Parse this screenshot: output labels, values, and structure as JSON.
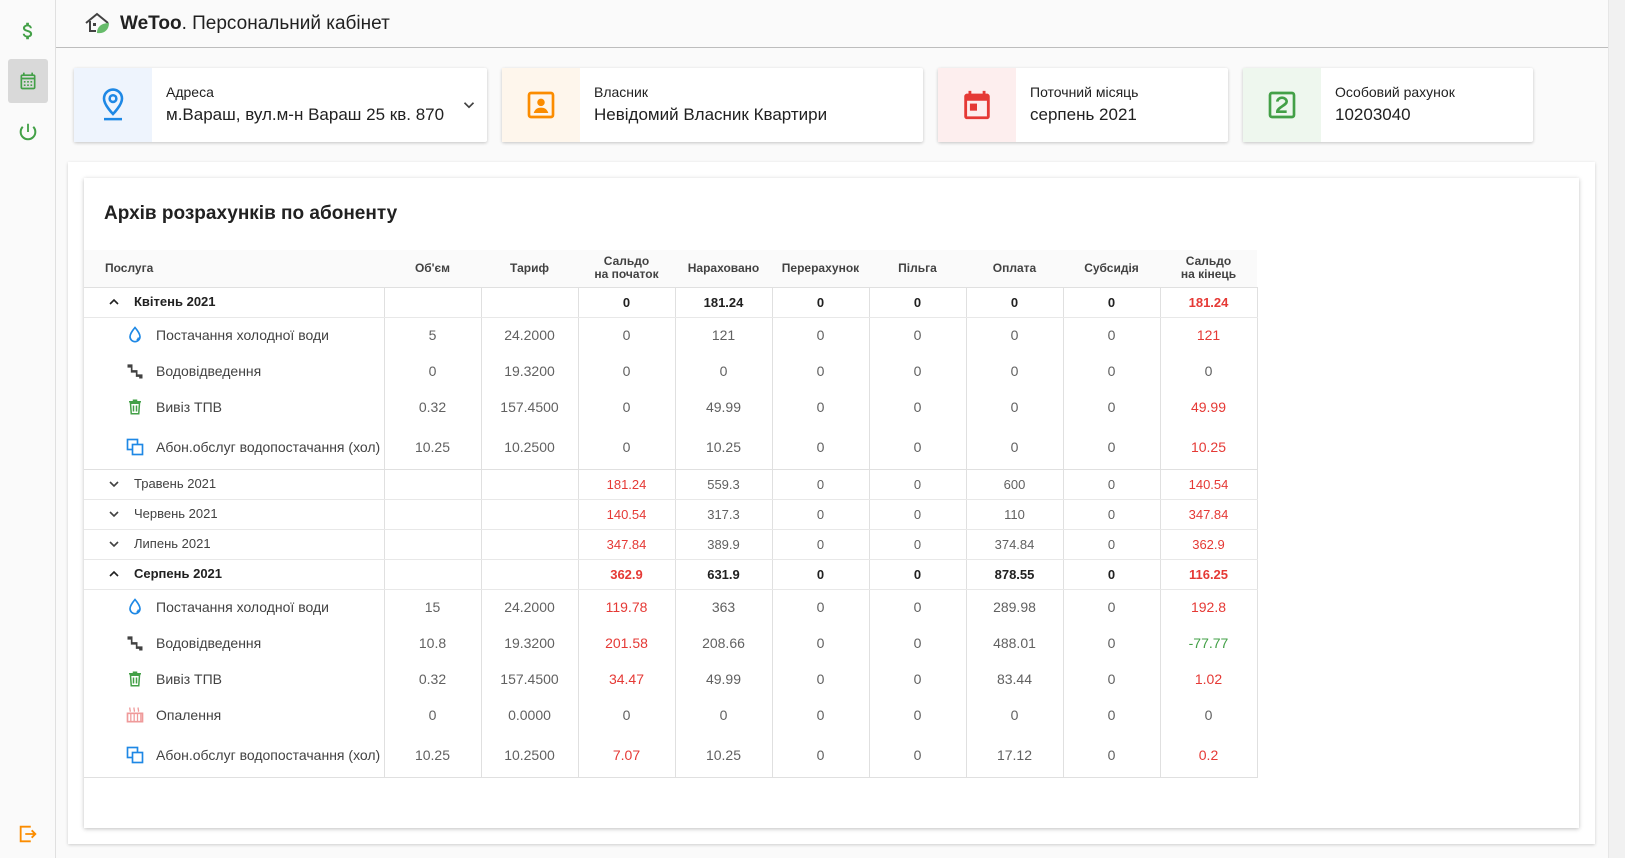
{
  "header": {
    "brand": "WeToo",
    "title_rest": ". Персональний кабінет"
  },
  "sidebar": {
    "items": [
      {
        "icon": "dollar-icon"
      },
      {
        "icon": "calendar-icon",
        "active": true
      },
      {
        "icon": "meter-icon"
      }
    ],
    "logout_icon": "logout-icon"
  },
  "cards": {
    "address": {
      "label": "Адреса",
      "value": "м.Вараш, вул.м-н Вараш 25 кв. 870"
    },
    "owner": {
      "label": "Власник",
      "value": "Невідомий Власник Квартири"
    },
    "month": {
      "label": "Поточний місяць",
      "value": "серпень 2021"
    },
    "account": {
      "label": "Особовий рахунок",
      "value": "10203040"
    }
  },
  "panel": {
    "title": "Архів розрахунків по абоненту"
  },
  "table": {
    "headers": {
      "service": "Послуга",
      "volume": "Об'єм",
      "tariff": "Тариф",
      "balance_start_1": "Сальдо",
      "balance_start_2": "на початок",
      "accrued": "Нараховано",
      "recalc": "Перерахунок",
      "benefit": "Пільга",
      "payment": "Оплата",
      "subsidy": "Субсидія",
      "balance_end_1": "Сальдо",
      "balance_end_2": "на кінець"
    },
    "groups": [
      {
        "name": "Квітень 2021",
        "expanded": true,
        "start": "0",
        "accrued": "181.24",
        "recalc": "0",
        "benefit": "0",
        "payment": "0",
        "subsidy": "0",
        "end": "181.24",
        "items": [
          {
            "icon": "water-drop-icon",
            "name": "Постачання холодної води",
            "volume": "5",
            "tariff": "24.2000",
            "start": "0",
            "accrued": "121",
            "recalc": "0",
            "benefit": "0",
            "payment": "0",
            "subsidy": "0",
            "end": "121"
          },
          {
            "icon": "drain-pipe-icon",
            "name": "Водовідведення",
            "volume": "0",
            "tariff": "19.3200",
            "start": "0",
            "accrued": "0",
            "recalc": "0",
            "benefit": "0",
            "payment": "0",
            "subsidy": "0",
            "end": "0"
          },
          {
            "icon": "trash-icon",
            "name": "Вивіз ТПВ",
            "volume": "0.32",
            "tariff": "157.4500",
            "start": "0",
            "accrued": "49.99",
            "recalc": "0",
            "benefit": "0",
            "payment": "0",
            "subsidy": "0",
            "end": "49.99"
          },
          {
            "icon": "copy-icon",
            "name": "Абон.обслуг водопостачання (хол)",
            "volume": "10.25",
            "tariff": "10.2500",
            "start": "0",
            "accrued": "10.25",
            "recalc": "0",
            "benefit": "0",
            "payment": "0",
            "subsidy": "0",
            "end": "10.25"
          }
        ]
      },
      {
        "name": "Травень 2021",
        "expanded": false,
        "start": "181.24",
        "accrued": "559.3",
        "recalc": "0",
        "benefit": "0",
        "payment": "600",
        "subsidy": "0",
        "end": "140.54",
        "items": []
      },
      {
        "name": "Червень 2021",
        "expanded": false,
        "start": "140.54",
        "accrued": "317.3",
        "recalc": "0",
        "benefit": "0",
        "payment": "110",
        "subsidy": "0",
        "end": "347.84",
        "items": []
      },
      {
        "name": "Липень 2021",
        "expanded": false,
        "start": "347.84",
        "accrued": "389.9",
        "recalc": "0",
        "benefit": "0",
        "payment": "374.84",
        "subsidy": "0",
        "end": "362.9",
        "items": []
      },
      {
        "name": "Серпень 2021",
        "expanded": true,
        "start": "362.9",
        "accrued": "631.9",
        "recalc": "0",
        "benefit": "0",
        "payment": "878.55",
        "subsidy": "0",
        "end": "116.25",
        "items": [
          {
            "icon": "water-drop-icon",
            "name": "Постачання холодної води",
            "volume": "15",
            "tariff": "24.2000",
            "start": "119.78",
            "accrued": "363",
            "recalc": "0",
            "benefit": "0",
            "payment": "289.98",
            "subsidy": "0",
            "end": "192.8"
          },
          {
            "icon": "drain-pipe-icon",
            "name": "Водовідведення",
            "volume": "10.8",
            "tariff": "19.3200",
            "start": "201.58",
            "accrued": "208.66",
            "recalc": "0",
            "benefit": "0",
            "payment": "488.01",
            "subsidy": "0",
            "end": "-77.77"
          },
          {
            "icon": "trash-icon",
            "name": "Вивіз ТПВ",
            "volume": "0.32",
            "tariff": "157.4500",
            "start": "34.47",
            "accrued": "49.99",
            "recalc": "0",
            "benefit": "0",
            "payment": "83.44",
            "subsidy": "0",
            "end": "1.02"
          },
          {
            "icon": "heating-icon",
            "name": "Опалення",
            "volume": "0",
            "tariff": "0.0000",
            "start": "0",
            "accrued": "0",
            "recalc": "0",
            "benefit": "0",
            "payment": "0",
            "subsidy": "0",
            "end": "0"
          },
          {
            "icon": "copy-icon",
            "name": "Абон.обслуг водопостачання (хол)",
            "volume": "10.25",
            "tariff": "10.2500",
            "start": "7.07",
            "accrued": "10.25",
            "recalc": "0",
            "benefit": "0",
            "payment": "17.12",
            "subsidy": "0",
            "end": "0.2"
          }
        ]
      }
    ]
  },
  "colors": {
    "positive_balance": "#e53935",
    "negative_balance": "#43a047",
    "accent_blue": "#1e88e5",
    "accent_orange": "#fb8c00",
    "accent_red": "#e53935",
    "accent_green": "#43a047"
  }
}
